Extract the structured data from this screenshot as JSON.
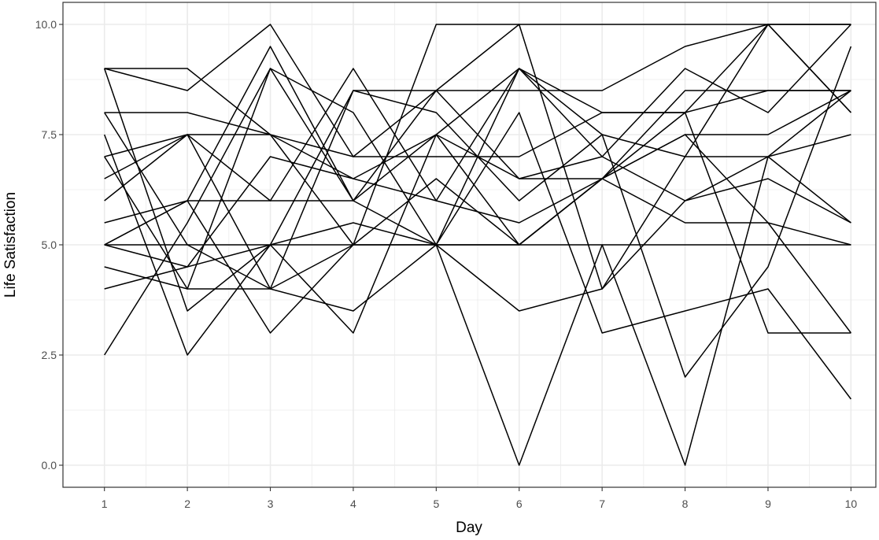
{
  "chart_data": {
    "type": "line",
    "title": "",
    "xlabel": "Day",
    "ylabel": "Life Satisfaction",
    "xlim": [
      0.5,
      10.3
    ],
    "ylim": [
      -0.5,
      10.5
    ],
    "x": [
      1,
      2,
      3,
      4,
      5,
      6,
      7,
      8,
      9,
      10
    ],
    "x_ticks": [
      "1",
      "2",
      "3",
      "4",
      "5",
      "6",
      "7",
      "8",
      "9",
      "10"
    ],
    "y_ticks": [
      "0.0",
      "2.5",
      "5.0",
      "7.5",
      "10.0"
    ],
    "y_tick_values": [
      0,
      2.5,
      5,
      7.5,
      10
    ],
    "grid": true,
    "line_color": "#000000",
    "grid_color": "#ebebeb",
    "series": [
      {
        "values": [
          9,
          8.5,
          10,
          7,
          8.5,
          6.5,
          7,
          9,
          8,
          10
        ]
      },
      {
        "values": [
          8,
          8,
          7.5,
          6.5,
          7.5,
          9,
          8,
          8,
          10,
          10
        ]
      },
      {
        "values": [
          7,
          7.5,
          7.5,
          7,
          7,
          7,
          8,
          8,
          8.5,
          8.5
        ]
      },
      {
        "values": [
          5,
          6,
          6,
          6,
          7.5,
          5,
          6.5,
          8.5,
          8.5,
          8.5
        ]
      },
      {
        "values": [
          5,
          5,
          5,
          5,
          5,
          5,
          5,
          5,
          5,
          5
        ]
      },
      {
        "values": [
          4.5,
          4,
          4,
          5,
          5,
          5,
          6.5,
          8,
          3,
          3
        ]
      },
      {
        "values": [
          2.5,
          5.5,
          9,
          6,
          8.5,
          10,
          4,
          7,
          10,
          8
        ]
      },
      {
        "values": [
          9,
          9,
          7.5,
          5,
          10,
          10,
          10,
          10,
          10,
          10
        ]
      },
      {
        "values": [
          6,
          7.5,
          4,
          3.5,
          5,
          0,
          5,
          0,
          7,
          5.5
        ]
      },
      {
        "values": [
          7.5,
          2.5,
          5,
          8.5,
          8.5,
          8.5,
          8.5,
          9.5,
          10,
          8
        ]
      },
      {
        "values": [
          5.5,
          6,
          3,
          5,
          6.5,
          5,
          6.5,
          5.5,
          5.5,
          5
        ]
      },
      {
        "values": [
          4,
          4.5,
          5,
          5.5,
          5,
          3.5,
          4,
          6,
          7,
          7.5
        ]
      },
      {
        "values": [
          8,
          5,
          4,
          8.5,
          8,
          6,
          7.5,
          7,
          7,
          8.5
        ]
      },
      {
        "values": [
          6.5,
          7.5,
          6,
          9,
          6,
          5.5,
          6.5,
          7.5,
          5.5,
          3
        ]
      },
      {
        "values": [
          5,
          6,
          9.5,
          6,
          5,
          9,
          7.5,
          2,
          4.5,
          9.5
        ]
      },
      {
        "values": [
          7,
          4,
          9,
          8,
          5,
          8,
          3,
          3.5,
          4,
          1.5
        ]
      },
      {
        "values": [
          9,
          3.5,
          5,
          3,
          7.5,
          6.5,
          6.5,
          7.5,
          7.5,
          8.5
        ]
      },
      {
        "values": [
          5,
          4.5,
          7,
          6.5,
          6,
          9,
          7,
          6,
          6.5,
          5.5
        ]
      }
    ]
  }
}
